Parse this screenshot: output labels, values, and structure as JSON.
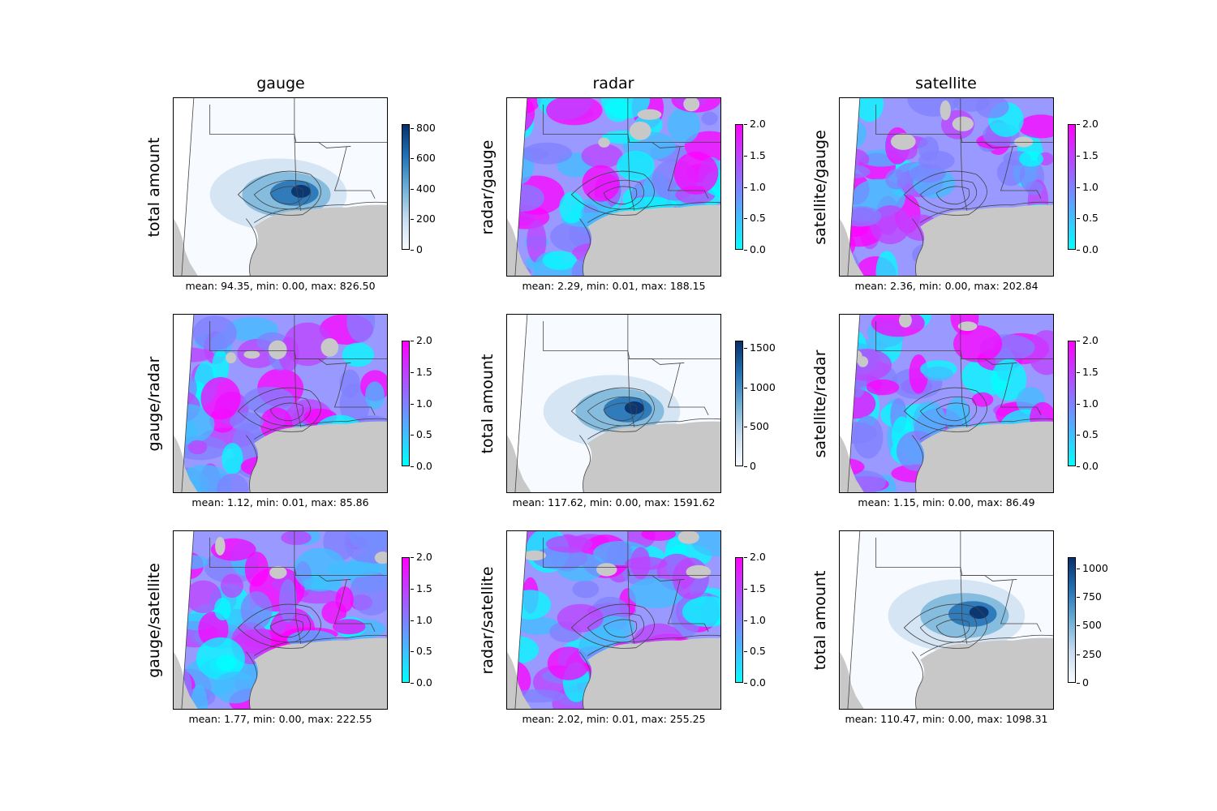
{
  "columns": [
    "gauge",
    "radar",
    "satellite"
  ],
  "colors": {
    "land_mask": "#c8c8c8",
    "amount_low": "#f7fbff",
    "amount_high": "#08306b",
    "ratio_low": "#00ffff",
    "ratio_mid": "#8080ff",
    "ratio_high": "#ff00ff",
    "boundary": "#444444"
  },
  "panels": [
    {
      "row": 0,
      "col": 0,
      "ylabel": "total amount",
      "stats": "mean: 94.35, min: 0.00, max: 826.50",
      "colormap": "Blues",
      "colorbar": {
        "ticks": [
          "0",
          "200",
          "400",
          "600",
          "800"
        ],
        "tick_values": [
          0,
          200,
          400,
          600,
          800
        ],
        "vmin": 0,
        "vmax": 826.5
      }
    },
    {
      "row": 0,
      "col": 1,
      "ylabel": "radar/gauge",
      "stats": "mean: 2.29, min: 0.01, max: 188.15",
      "colormap": "cool",
      "colorbar": {
        "ticks": [
          "0.0",
          "0.5",
          "1.0",
          "1.5",
          "2.0"
        ],
        "tick_values": [
          0,
          0.5,
          1.0,
          1.5,
          2.0
        ],
        "vmin": 0,
        "vmax": 2.0
      }
    },
    {
      "row": 0,
      "col": 2,
      "ylabel": "satellite/gauge",
      "stats": "mean: 2.36, min: 0.00, max: 202.84",
      "colormap": "cool",
      "colorbar": {
        "ticks": [
          "0.0",
          "0.5",
          "1.0",
          "1.5",
          "2.0"
        ],
        "tick_values": [
          0,
          0.5,
          1.0,
          1.5,
          2.0
        ],
        "vmin": 0,
        "vmax": 2.0
      }
    },
    {
      "row": 1,
      "col": 0,
      "ylabel": "gauge/radar",
      "stats": "mean: 1.12, min: 0.01, max: 85.86",
      "colormap": "cool",
      "colorbar": {
        "ticks": [
          "0.0",
          "0.5",
          "1.0",
          "1.5",
          "2.0"
        ],
        "tick_values": [
          0,
          0.5,
          1.0,
          1.5,
          2.0
        ],
        "vmin": 0,
        "vmax": 2.0
      }
    },
    {
      "row": 1,
      "col": 1,
      "ylabel": "total amount",
      "stats": "mean: 117.62, min: 0.00, max: 1591.62",
      "colormap": "Blues",
      "colorbar": {
        "ticks": [
          "0",
          "500",
          "1000",
          "1500"
        ],
        "tick_values": [
          0,
          500,
          1000,
          1500
        ],
        "vmin": 0,
        "vmax": 1591.62
      }
    },
    {
      "row": 1,
      "col": 2,
      "ylabel": "satellite/radar",
      "stats": "mean: 1.15, min: 0.00, max: 86.49",
      "colormap": "cool",
      "colorbar": {
        "ticks": [
          "0.0",
          "0.5",
          "1.0",
          "1.5",
          "2.0"
        ],
        "tick_values": [
          0,
          0.5,
          1.0,
          1.5,
          2.0
        ],
        "vmin": 0,
        "vmax": 2.0
      }
    },
    {
      "row": 2,
      "col": 0,
      "ylabel": "gauge/satellite",
      "stats": "mean: 1.77, min: 0.00, max: 222.55",
      "colormap": "cool",
      "colorbar": {
        "ticks": [
          "0.0",
          "0.5",
          "1.0",
          "1.5",
          "2.0"
        ],
        "tick_values": [
          0,
          0.5,
          1.0,
          1.5,
          2.0
        ],
        "vmin": 0,
        "vmax": 2.0
      }
    },
    {
      "row": 2,
      "col": 1,
      "ylabel": "radar/satellite",
      "stats": "mean: 2.02, min: 0.01, max: 255.25",
      "colormap": "cool",
      "colorbar": {
        "ticks": [
          "0.0",
          "0.5",
          "1.0",
          "1.5",
          "2.0"
        ],
        "tick_values": [
          0,
          0.5,
          1.0,
          1.5,
          2.0
        ],
        "vmin": 0,
        "vmax": 2.0
      }
    },
    {
      "row": 2,
      "col": 2,
      "ylabel": "total amount",
      "stats": "mean: 110.47, min: 0.00, max: 1098.31",
      "colormap": "Blues",
      "colorbar": {
        "ticks": [
          "0",
          "250",
          "500",
          "750",
          "1000"
        ],
        "tick_values": [
          0,
          250,
          500,
          750,
          1000
        ],
        "vmin": 0,
        "vmax": 1098.31
      }
    }
  ]
}
